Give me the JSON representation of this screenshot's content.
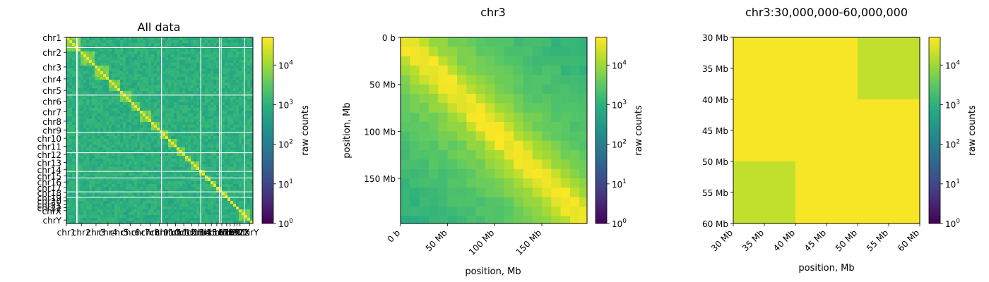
{
  "colorbar": {
    "label": "raw counts",
    "ticks": [
      {
        "label": "10",
        "exp": "0"
      },
      {
        "label": "10",
        "exp": "1"
      },
      {
        "label": "10",
        "exp": "2"
      },
      {
        "label": "10",
        "exp": "3"
      },
      {
        "label": "10",
        "exp": "4"
      }
    ]
  },
  "chart_data": [
    {
      "type": "heatmap",
      "title": "All data",
      "xlabel": "",
      "ylabel": "",
      "color_scale": "log",
      "vmin": 1,
      "vmax": 50000,
      "colormap": "viridis",
      "categories": [
        "chr1",
        "chr2",
        "chr3",
        "chr4",
        "chr5",
        "chr6",
        "chr7",
        "chr8",
        "chr9",
        "chr10",
        "chr11",
        "chr12",
        "chr13",
        "chr14",
        "chr15",
        "chr16",
        "chr17",
        "chr18",
        "chr19",
        "chr20",
        "chr21",
        "chr22",
        "chrX",
        "chrY"
      ],
      "x_tick_labels": [
        "chr1",
        "chr2",
        "chr3",
        "chr4",
        "chr5",
        "chr6",
        "chr7",
        "chr8",
        "chr9",
        "chr10",
        "chr11",
        "chr12",
        "chr13",
        "chr14",
        "chr15",
        "chr16",
        "chr17",
        "chr18",
        "chr19",
        "chr20",
        "chr21",
        "chr22",
        "chrX",
        "chrY"
      ],
      "y_tick_labels": [
        "chr1",
        "chr2",
        "chr3",
        "chr4",
        "chr5",
        "chr6",
        "chr7",
        "chr8",
        "chr9",
        "chr10",
        "chr11",
        "chr12",
        "chr13",
        "chr14",
        "chr15",
        "chr16",
        "chr17",
        "chr18",
        "chr19",
        "chr20",
        "chr21",
        "chr22",
        "chrX",
        "chrY"
      ],
      "chromosome_lengths_mb": [
        248,
        242,
        198,
        190,
        181,
        171,
        159,
        145,
        138,
        134,
        135,
        133,
        114,
        107,
        102,
        90,
        83,
        80,
        59,
        64,
        47,
        51,
        156,
        57
      ],
      "diagonal_counts": 40000,
      "background_counts": 800,
      "colorbar_label": "raw counts"
    },
    {
      "type": "heatmap",
      "title": "chr3",
      "xlabel": "position, Mb",
      "ylabel": "position, Mb",
      "color_scale": "log",
      "vmin": 1,
      "vmax": 50000,
      "colormap": "viridis",
      "bin_size_mb": 10,
      "x_range": [
        0,
        198
      ],
      "y_range": [
        0,
        198
      ],
      "x_tick_labels": [
        "0 b",
        "50 Mb",
        "100 Mb",
        "150 Mb"
      ],
      "y_tick_labels": [
        "0 b",
        "50 Mb",
        "100 Mb",
        "150 Mb"
      ],
      "diagonal_counts": 40000,
      "min_counts": 700,
      "colorbar_label": "raw counts"
    },
    {
      "type": "heatmap",
      "title": "chr3:30,000,000-60,000,000",
      "xlabel": "position, Mb",
      "ylabel": "",
      "color_scale": "log",
      "vmin": 1,
      "vmax": 50000,
      "colormap": "viridis",
      "x_range": [
        30,
        60
      ],
      "y_range": [
        30,
        60
      ],
      "x_tick_labels": [
        "30 Mb",
        "35 Mb",
        "40 Mb",
        "45 Mb",
        "50 Mb",
        "55 Mb",
        "60 Mb"
      ],
      "y_tick_labels": [
        "30 Mb",
        "35 Mb",
        "40 Mb",
        "45 Mb",
        "50 Mb",
        "55 Mb",
        "60 Mb"
      ],
      "bin_edges_mb": [
        30,
        40,
        50,
        60
      ],
      "values": [
        [
          45000,
          45000,
          18000
        ],
        [
          45000,
          45000,
          45000
        ],
        [
          18000,
          45000,
          45000
        ]
      ],
      "colorbar_label": "raw counts"
    }
  ]
}
